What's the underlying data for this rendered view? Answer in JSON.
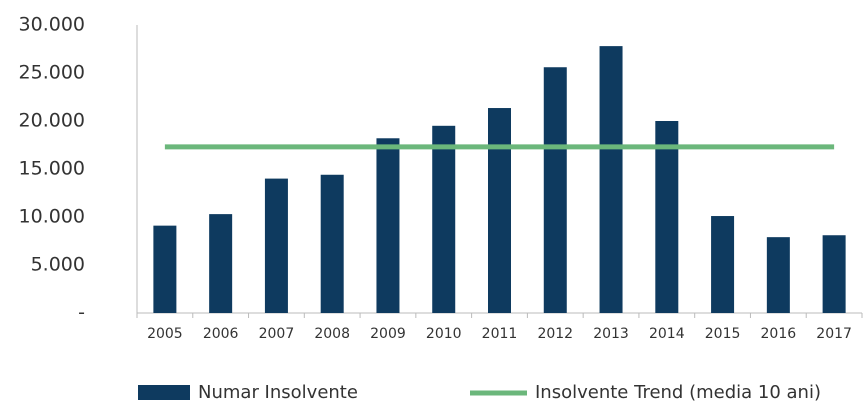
{
  "chart_data": {
    "type": "bar",
    "categories": [
      "2005",
      "2006",
      "2007",
      "2008",
      "2009",
      "2010",
      "2011",
      "2012",
      "2013",
      "2014",
      "2015",
      "2016",
      "2017"
    ],
    "series": [
      {
        "name": "Numar Insolvente",
        "type": "bar",
        "color": "#0e3a5f",
        "values": [
          9100,
          10300,
          14000,
          14400,
          18200,
          19500,
          21350,
          25600,
          27800,
          20000,
          10100,
          7900,
          8100
        ]
      },
      {
        "name": "Insolvente Trend (media 10 ani)",
        "type": "line",
        "color": "#6bb77b",
        "values": [
          17300,
          17300,
          17300,
          17300,
          17300,
          17300,
          17300,
          17300,
          17300,
          17300,
          17300,
          17300,
          17300
        ]
      }
    ],
    "ylim": [
      0,
      30000
    ],
    "yticks": [
      {
        "value": 0,
        "label": "-"
      },
      {
        "value": 5000,
        "label": "5.000"
      },
      {
        "value": 10000,
        "label": "10.000"
      },
      {
        "value": 15000,
        "label": "15.000"
      },
      {
        "value": 20000,
        "label": "20.000"
      },
      {
        "value": 25000,
        "label": "25.000"
      },
      {
        "value": 30000,
        "label": "30.000"
      }
    ],
    "grid": false,
    "legend": "bottom"
  }
}
